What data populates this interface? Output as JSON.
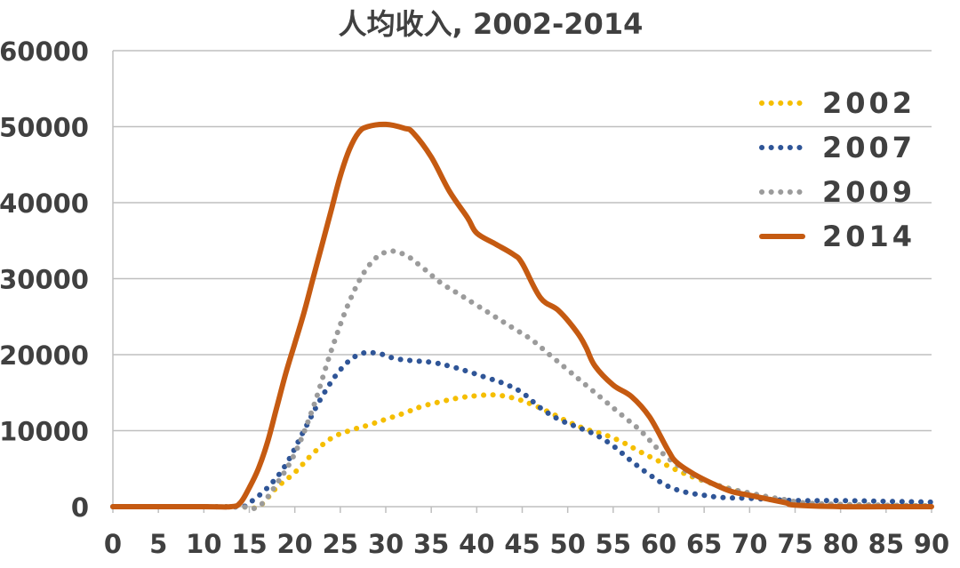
{
  "chart_data": {
    "type": "line",
    "title": "人均收入, 2002-2014",
    "xlabel": "",
    "ylabel": "",
    "xlim": [
      0,
      90
    ],
    "ylim": [
      0,
      60000
    ],
    "x_ticks": [
      0,
      5,
      10,
      15,
      20,
      25,
      30,
      35,
      40,
      45,
      50,
      55,
      60,
      65,
      70,
      75,
      80,
      85,
      90
    ],
    "y_ticks": [
      0,
      10000,
      20000,
      30000,
      40000,
      50000,
      60000
    ],
    "grid": "horizontal",
    "legend_position": "top-right",
    "series": [
      {
        "name": "2002",
        "style": "dotted",
        "color": "#F5BE00",
        "points": [
          [
            0,
            0
          ],
          [
            10,
            0
          ],
          [
            14,
            0
          ],
          [
            16,
            0
          ],
          [
            18,
            2500
          ],
          [
            20,
            4500
          ],
          [
            22,
            7000
          ],
          [
            24,
            9000
          ],
          [
            26,
            10000
          ],
          [
            28,
            10700
          ],
          [
            30,
            11500
          ],
          [
            32,
            12300
          ],
          [
            34,
            13200
          ],
          [
            36,
            13800
          ],
          [
            38,
            14300
          ],
          [
            40,
            14600
          ],
          [
            42,
            14700
          ],
          [
            44,
            14300
          ],
          [
            46,
            13500
          ],
          [
            48,
            12400
          ],
          [
            50,
            11200
          ],
          [
            52,
            10200
          ],
          [
            54,
            9500
          ],
          [
            56,
            8500
          ],
          [
            58,
            7200
          ],
          [
            60,
            6000
          ],
          [
            62,
            4800
          ],
          [
            64,
            3800
          ],
          [
            66,
            3000
          ],
          [
            68,
            2300
          ],
          [
            70,
            1700
          ],
          [
            72,
            1200
          ],
          [
            74,
            800
          ],
          [
            76,
            300
          ],
          [
            80,
            200
          ],
          [
            85,
            150
          ],
          [
            90,
            100
          ]
        ]
      },
      {
        "name": "2007",
        "style": "dotted",
        "color": "#2F5597",
        "points": [
          [
            0,
            0
          ],
          [
            10,
            0
          ],
          [
            14,
            0
          ],
          [
            15,
            500
          ],
          [
            17,
            2500
          ],
          [
            19,
            5500
          ],
          [
            21,
            10000
          ],
          [
            23,
            14500
          ],
          [
            25,
            18000
          ],
          [
            27,
            20000
          ],
          [
            29,
            20200
          ],
          [
            31,
            19500
          ],
          [
            33,
            19200
          ],
          [
            35,
            19000
          ],
          [
            37,
            18500
          ],
          [
            39,
            17800
          ],
          [
            41,
            17000
          ],
          [
            43,
            16200
          ],
          [
            45,
            15000
          ],
          [
            47,
            13000
          ],
          [
            49,
            11500
          ],
          [
            51,
            10500
          ],
          [
            53,
            9500
          ],
          [
            55,
            8000
          ],
          [
            57,
            6000
          ],
          [
            59,
            4200
          ],
          [
            61,
            2700
          ],
          [
            63,
            1900
          ],
          [
            65,
            1500
          ],
          [
            67,
            1200
          ],
          [
            70,
            1100
          ],
          [
            73,
            900
          ],
          [
            76,
            800
          ],
          [
            80,
            800
          ],
          [
            85,
            700
          ],
          [
            90,
            600
          ]
        ]
      },
      {
        "name": "2009",
        "style": "dotted",
        "color": "#9B9B9B",
        "points": [
          [
            0,
            0
          ],
          [
            10,
            0
          ],
          [
            14,
            0
          ],
          [
            16,
            0
          ],
          [
            18,
            3000
          ],
          [
            20,
            7000
          ],
          [
            22,
            13000
          ],
          [
            24,
            20500
          ],
          [
            26,
            27000
          ],
          [
            28,
            31500
          ],
          [
            30,
            33500
          ],
          [
            32,
            33200
          ],
          [
            34,
            31500
          ],
          [
            36,
            29500
          ],
          [
            38,
            28000
          ],
          [
            40,
            26500
          ],
          [
            42,
            25000
          ],
          [
            44,
            23500
          ],
          [
            46,
            22000
          ],
          [
            48,
            20000
          ],
          [
            50,
            18000
          ],
          [
            52,
            16000
          ],
          [
            54,
            14000
          ],
          [
            56,
            12000
          ],
          [
            58,
            10000
          ],
          [
            60,
            7500
          ],
          [
            62,
            5500
          ],
          [
            64,
            4000
          ],
          [
            66,
            3000
          ],
          [
            68,
            2300
          ],
          [
            70,
            1800
          ],
          [
            72,
            1300
          ],
          [
            74,
            900
          ],
          [
            76,
            500
          ],
          [
            80,
            300
          ],
          [
            85,
            200
          ],
          [
            90,
            100
          ]
        ]
      },
      {
        "name": "2014",
        "style": "solid",
        "color": "#C55A11",
        "points": [
          [
            0,
            0
          ],
          [
            10,
            0
          ],
          [
            13,
            0
          ],
          [
            14,
            500
          ],
          [
            15,
            2500
          ],
          [
            16,
            5000
          ],
          [
            17,
            8500
          ],
          [
            18,
            13000
          ],
          [
            19,
            17500
          ],
          [
            20,
            21500
          ],
          [
            21,
            25500
          ],
          [
            22,
            30000
          ],
          [
            23,
            34500
          ],
          [
            24,
            39000
          ],
          [
            25,
            43500
          ],
          [
            26,
            47000
          ],
          [
            27,
            49200
          ],
          [
            28,
            50000
          ],
          [
            30,
            50300
          ],
          [
            32,
            49800
          ],
          [
            33,
            49200
          ],
          [
            35,
            46000
          ],
          [
            37,
            41500
          ],
          [
            39,
            38000
          ],
          [
            40,
            36000
          ],
          [
            42,
            34600
          ],
          [
            44,
            33200
          ],
          [
            45,
            32000
          ],
          [
            47,
            27500
          ],
          [
            49,
            25800
          ],
          [
            51,
            23000
          ],
          [
            52,
            21000
          ],
          [
            53,
            18500
          ],
          [
            55,
            16000
          ],
          [
            57,
            14500
          ],
          [
            59,
            11800
          ],
          [
            61,
            7500
          ],
          [
            62,
            5800
          ],
          [
            64,
            4200
          ],
          [
            66,
            3000
          ],
          [
            68,
            2000
          ],
          [
            70,
            1500
          ],
          [
            72,
            1000
          ],
          [
            74,
            500
          ],
          [
            75,
            200
          ],
          [
            80,
            0
          ],
          [
            85,
            0
          ],
          [
            90,
            0
          ]
        ]
      }
    ]
  }
}
